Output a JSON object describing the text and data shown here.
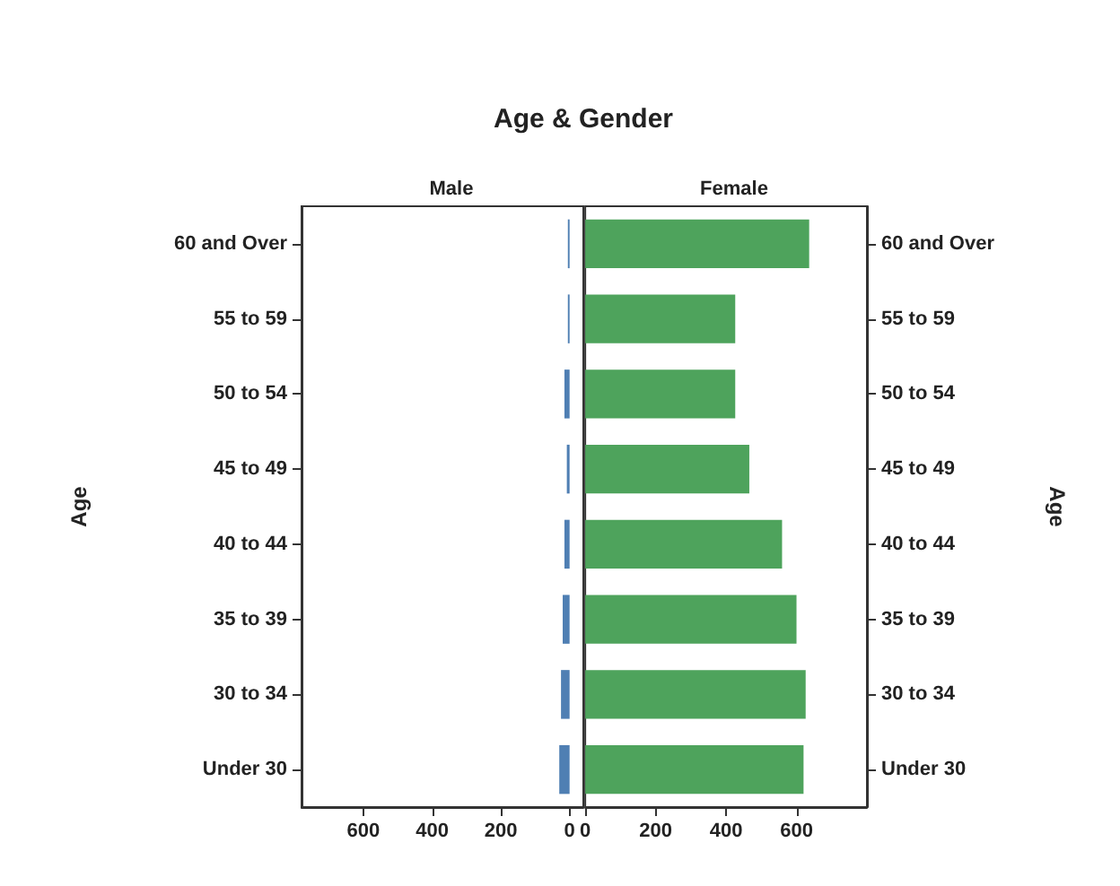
{
  "chart_data": [
    {
      "type": "bar",
      "orientation": "horizontal",
      "title": "Age & Gender",
      "ylabel": "Age",
      "categories": [
        "60 and Over",
        "55 to 59",
        "50 to 54",
        "45 to 49",
        "40 to 44",
        "35 to 39",
        "30 to 34",
        "Under 30"
      ],
      "series": [
        {
          "name": "Male",
          "color": "#4f7fb3",
          "values": [
            5,
            5,
            15,
            8,
            15,
            20,
            25,
            30
          ]
        }
      ],
      "xlim": [
        780,
        -40
      ],
      "xticks": [
        600,
        400,
        200,
        0
      ],
      "grid": false,
      "legend": false
    },
    {
      "type": "bar",
      "orientation": "horizontal",
      "ylabel": "Age",
      "categories": [
        "60 and Over",
        "55 to 59",
        "50 to 54",
        "45 to 49",
        "40 to 44",
        "35 to 39",
        "30 to 34",
        "Under 30"
      ],
      "series": [
        {
          "name": "Female",
          "color": "#4ea35c",
          "values": [
            636,
            426,
            426,
            466,
            559,
            600,
            626,
            620
          ]
        }
      ],
      "xlim": [
        0,
        800
      ],
      "xticks": [
        0,
        200,
        400,
        600
      ],
      "grid": false,
      "legend": false
    }
  ]
}
